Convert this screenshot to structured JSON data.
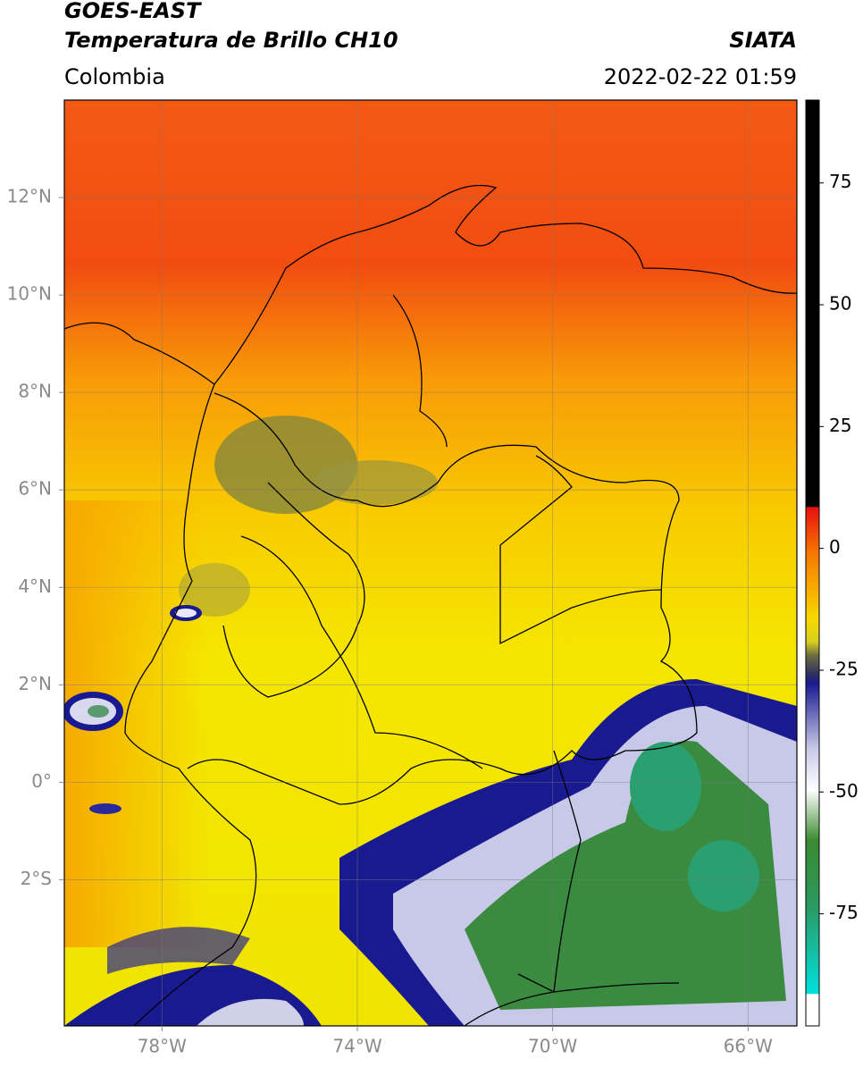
{
  "header": {
    "satellite": "GOES-EAST",
    "product": "Temperatura de Brillo CH10",
    "region": "Colombia",
    "source": "SIATA",
    "timestamp": "2022-02-22 01:59"
  },
  "map": {
    "lonlim": [
      -80,
      -65
    ],
    "latlim": [
      -5,
      14
    ],
    "grid": true,
    "lon_ticks": [
      {
        "value": -78,
        "label": "78°W"
      },
      {
        "value": -74,
        "label": "74°W"
      },
      {
        "value": -70,
        "label": "70°W"
      },
      {
        "value": -66,
        "label": "66°W"
      }
    ],
    "lat_ticks": [
      {
        "value": 12,
        "label": "12°N"
      },
      {
        "value": 10,
        "label": "10°N"
      },
      {
        "value": 8,
        "label": "8°N"
      },
      {
        "value": 6,
        "label": "6°N"
      },
      {
        "value": 4,
        "label": "4°N"
      },
      {
        "value": 2,
        "label": "2°N"
      },
      {
        "value": 0,
        "label": "0°"
      },
      {
        "value": -2,
        "label": "2°S"
      }
    ]
  },
  "colorbar": {
    "lim": [
      -98,
      92
    ],
    "ticks": [
      75,
      50,
      25,
      0,
      -25,
      -50,
      -75
    ]
  }
}
